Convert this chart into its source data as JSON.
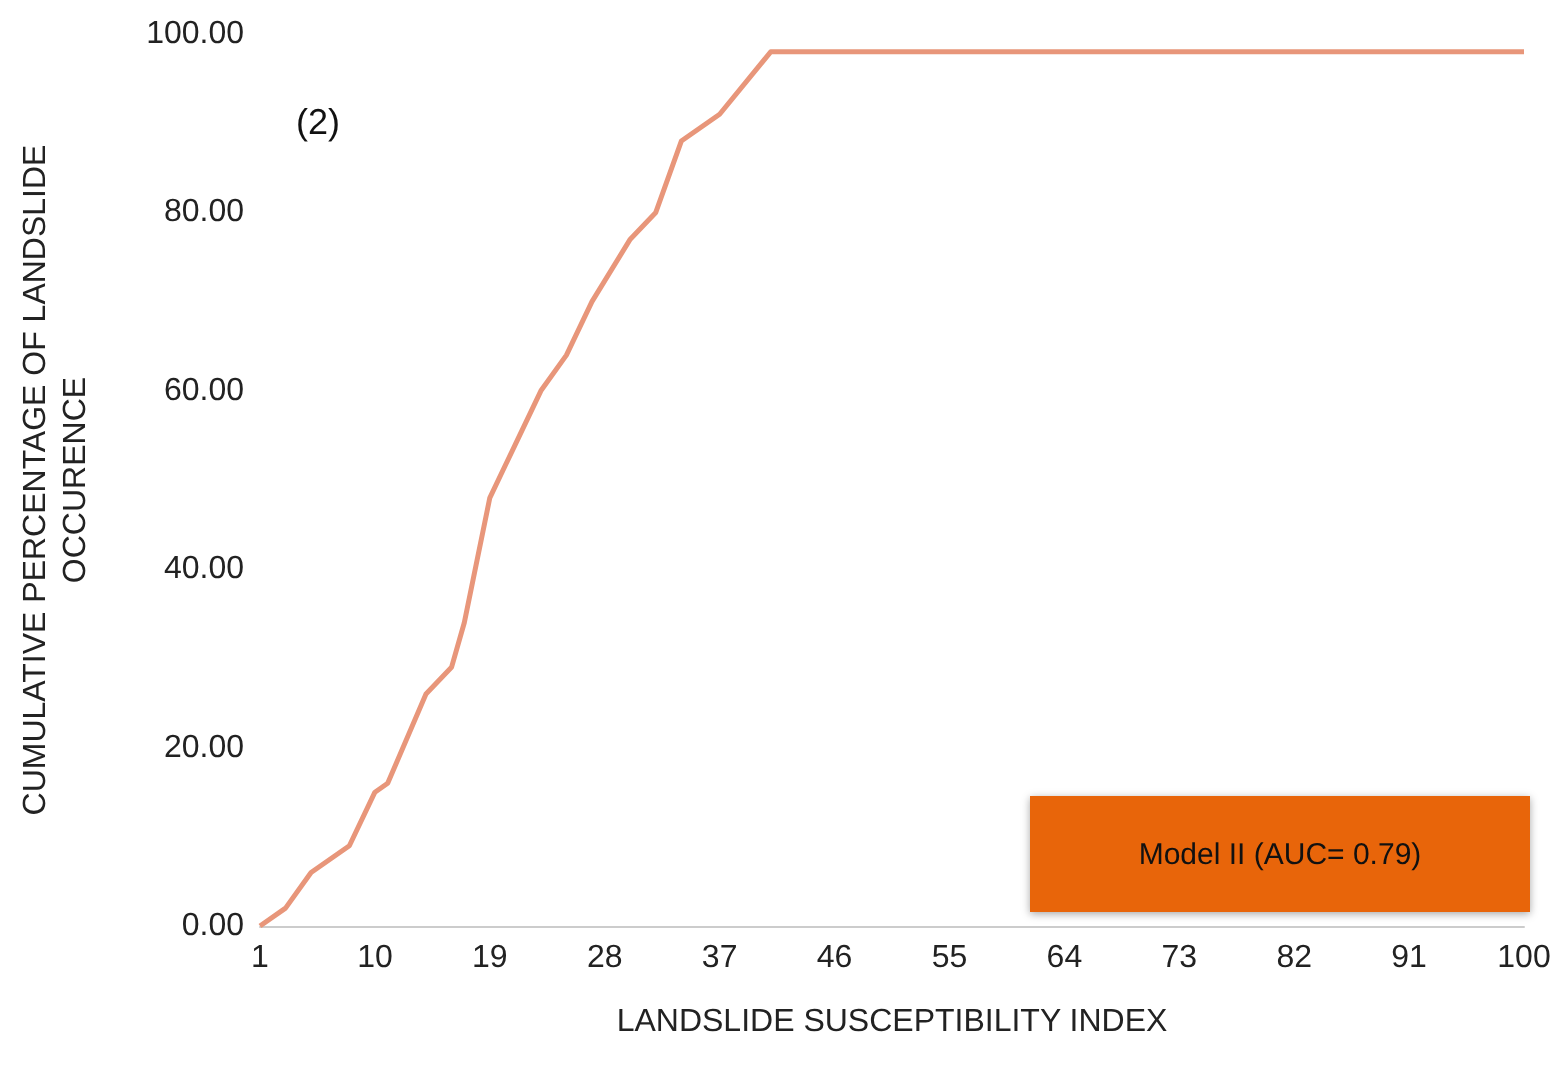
{
  "chart_data": {
    "type": "line",
    "xlabel": "LANDSLIDE SUSCEPTIBILITY INDEX",
    "ylabel": "CUMULATIVE PERCENTAGE OF LANDSLIDE OCCURENCE",
    "x": [
      1,
      3,
      5,
      8,
      10,
      11,
      14,
      16,
      17,
      18,
      19,
      21,
      23,
      25,
      27,
      30,
      32,
      34,
      37,
      41,
      100
    ],
    "series": [
      {
        "color": "#e8967a",
        "values": [
          0,
          2,
          6,
          9,
          15,
          16,
          26,
          29,
          34,
          41,
          48,
          54,
          60,
          64,
          70,
          77,
          80,
          88,
          91,
          98,
          98
        ]
      }
    ],
    "xlim": [
      1,
      100
    ],
    "xticks": [
      1,
      10,
      19,
      28,
      37,
      46,
      55,
      64,
      73,
      82,
      91,
      100
    ],
    "ylim": [
      0,
      100
    ],
    "yticks": [
      {
        "value": 0,
        "label": "0.00"
      },
      {
        "value": 20,
        "label": "20.00"
      },
      {
        "value": 40,
        "label": "40.00"
      },
      {
        "value": 60,
        "label": "60.00"
      },
      {
        "value": 80,
        "label": "80.00"
      },
      {
        "value": 100,
        "label": "100.00"
      }
    ],
    "annotations": [
      "(2)",
      "Model II (AUC= 0.79)"
    ],
    "marker": "none",
    "grid": false
  }
}
